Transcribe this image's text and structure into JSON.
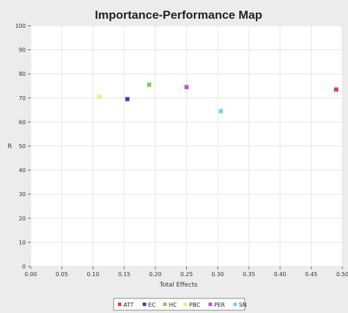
{
  "chart_data": {
    "type": "scatter",
    "title": "Importance-Performance Map",
    "xlabel": "Total Effects",
    "ylabel": "R",
    "xlim": [
      0,
      0.5
    ],
    "ylim": [
      0,
      100
    ],
    "x_ticks": [
      "0.00",
      "0.05",
      "0.10",
      "0.15",
      "0.20",
      "0.25",
      "0.30",
      "0.35",
      "0.40",
      "0.45",
      "0.50"
    ],
    "y_ticks": [
      "0",
      "10",
      "20",
      "30",
      "40",
      "50",
      "60",
      "70",
      "80",
      "90",
      "100"
    ],
    "grid": true,
    "legend_position": "bottom",
    "points": [
      {
        "label": "ATT",
        "x": 0.49,
        "y": 73.5,
        "color": "#e83a4a"
      },
      {
        "label": "EC",
        "x": 0.155,
        "y": 69.5,
        "color": "#3a3fbf"
      },
      {
        "label": "HC",
        "x": 0.19,
        "y": 75.5,
        "color": "#7ad14a"
      },
      {
        "label": "PBC",
        "x": 0.11,
        "y": 70.5,
        "color": "#f0f06a"
      },
      {
        "label": "PER",
        "x": 0.25,
        "y": 74.5,
        "color": "#d24ad6"
      },
      {
        "label": "SN",
        "x": 0.305,
        "y": 64.5,
        "color": "#6ad8e6"
      }
    ]
  }
}
